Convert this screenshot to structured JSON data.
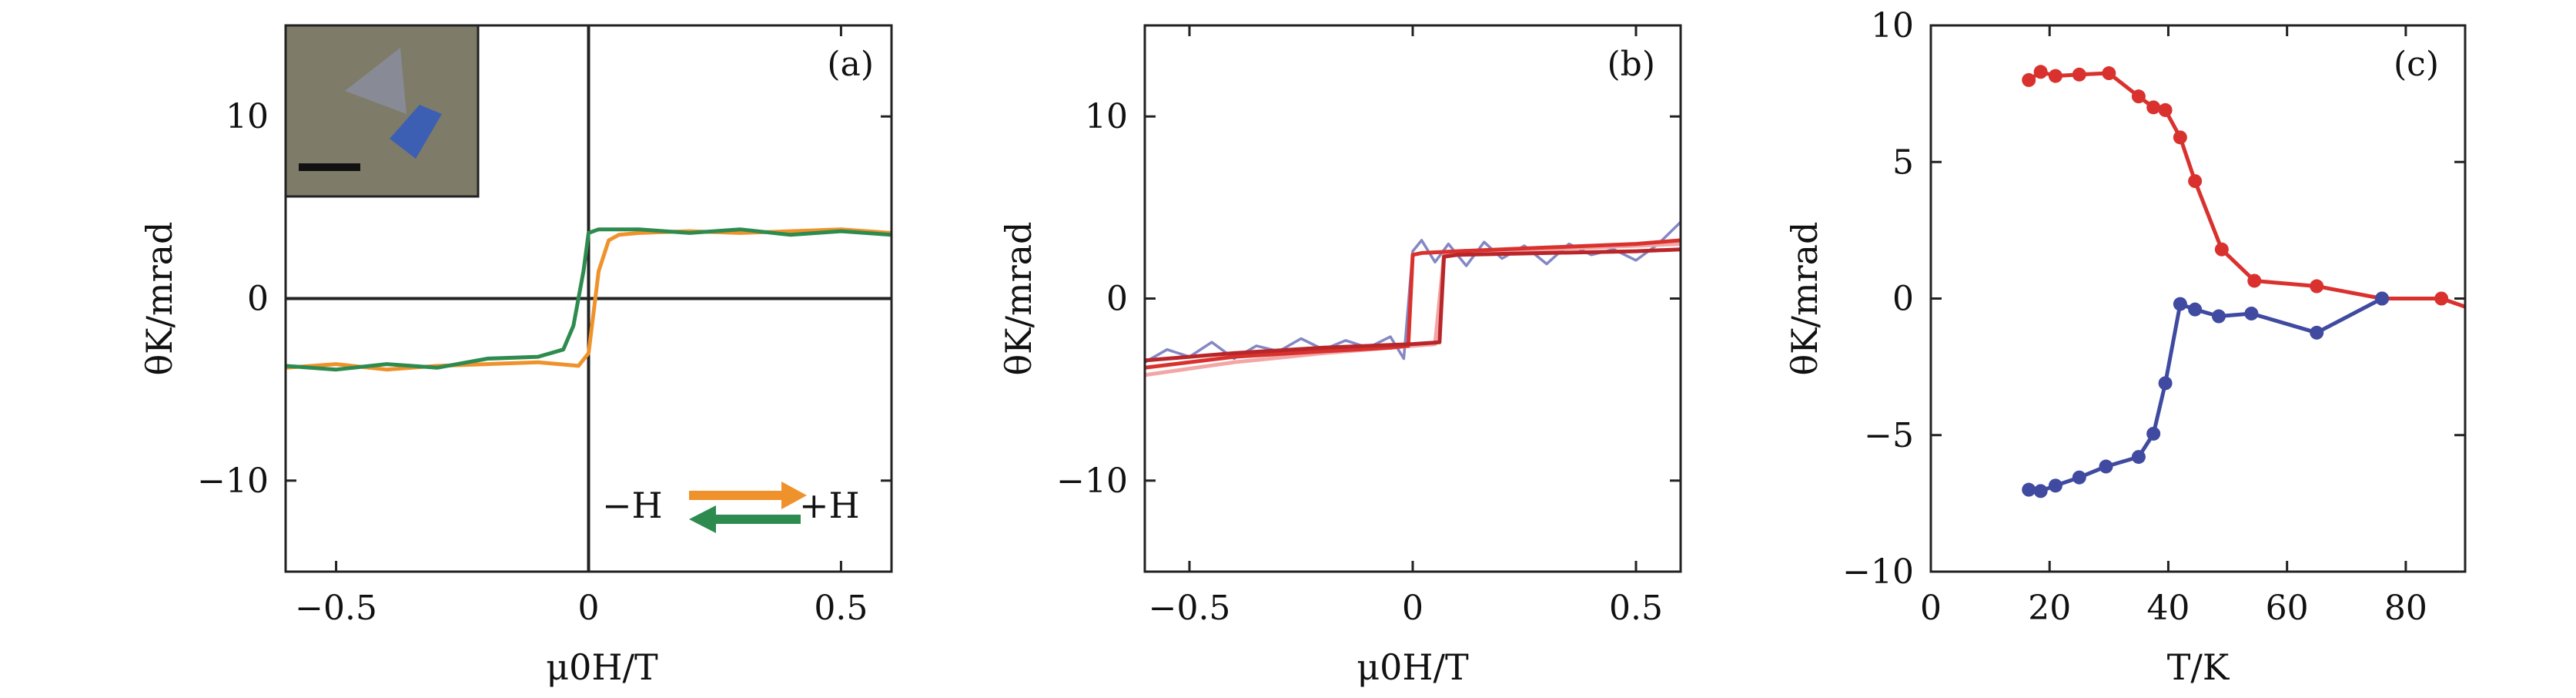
{
  "chart_data": [
    {
      "panel": "(a)",
      "type": "line",
      "xlabel": "μ0H/T",
      "ylabel": "θK/mrad",
      "xlim": [
        -0.6,
        0.6
      ],
      "ylim": [
        -15,
        15
      ],
      "xticks": [
        -0.5,
        0,
        0.5
      ],
      "xtick_labels": [
        "−0.5",
        "0",
        "0.5"
      ],
      "yticks": [
        -10,
        0,
        10
      ],
      "ytick_labels": [
        "−10",
        "0",
        "10"
      ],
      "zero_lines": true,
      "inset": "optical micrograph with scale bar (upper-left)",
      "legend": {
        "left": "−H",
        "right": "+H"
      },
      "series": [
        {
          "name": "sweep +H (orange)",
          "color": "#f0922b",
          "x": [
            -0.6,
            -0.5,
            -0.4,
            -0.3,
            -0.2,
            -0.1,
            -0.02,
            0.0,
            0.02,
            0.04,
            0.06,
            0.1,
            0.2,
            0.3,
            0.4,
            0.5,
            0.6
          ],
          "y": [
            -3.8,
            -3.6,
            -3.9,
            -3.7,
            -3.6,
            -3.5,
            -3.7,
            -3.0,
            1.5,
            3.2,
            3.5,
            3.6,
            3.7,
            3.6,
            3.7,
            3.8,
            3.6
          ]
        },
        {
          "name": "sweep −H (green)",
          "color": "#2e8b4f",
          "x": [
            -0.6,
            -0.5,
            -0.4,
            -0.3,
            -0.2,
            -0.1,
            -0.05,
            -0.03,
            -0.01,
            0.0,
            0.02,
            0.1,
            0.2,
            0.3,
            0.4,
            0.5,
            0.6
          ],
          "y": [
            -3.7,
            -3.9,
            -3.6,
            -3.8,
            -3.3,
            -3.2,
            -2.8,
            -1.5,
            1.5,
            3.6,
            3.8,
            3.8,
            3.6,
            3.8,
            3.5,
            3.7,
            3.5
          ]
        }
      ]
    },
    {
      "panel": "(b)",
      "type": "line",
      "xlabel": "μ0H/T",
      "ylabel": "θK/mrad",
      "xlim": [
        -0.6,
        0.6
      ],
      "ylim": [
        -15,
        15
      ],
      "xticks": [
        -0.5,
        0,
        0.5
      ],
      "xtick_labels": [
        "−0.5",
        "0",
        "0.5"
      ],
      "yticks": [
        -10,
        0,
        10
      ],
      "ytick_labels": [
        "−10",
        "0",
        "10"
      ],
      "series": [
        {
          "name": "noisy loop (blue)",
          "color": "#6f72b8",
          "x": [
            -0.6,
            -0.55,
            -0.5,
            -0.45,
            -0.4,
            -0.35,
            -0.3,
            -0.25,
            -0.2,
            -0.15,
            -0.1,
            -0.05,
            -0.02,
            0.0,
            0.02,
            0.05,
            0.08,
            0.12,
            0.16,
            0.2,
            0.25,
            0.3,
            0.35,
            0.4,
            0.45,
            0.5,
            0.55,
            0.6
          ],
          "y": [
            -3.5,
            -2.8,
            -3.2,
            -2.4,
            -3.3,
            -2.6,
            -2.9,
            -2.2,
            -2.8,
            -2.3,
            -2.7,
            -2.1,
            -3.3,
            2.6,
            3.2,
            2.0,
            3.0,
            1.8,
            3.1,
            2.2,
            2.9,
            1.9,
            3.0,
            2.4,
            2.7,
            2.1,
            3.0,
            4.2
          ]
        },
        {
          "name": "light loop (pink)",
          "color": "#f3a6a6",
          "x": [
            -0.6,
            -0.4,
            -0.2,
            -0.1,
            0.0,
            0.05,
            0.07,
            0.1,
            0.3,
            0.5,
            0.6
          ],
          "y": [
            -4.2,
            -3.5,
            -3.0,
            -2.8,
            -2.6,
            -2.5,
            2.4,
            2.5,
            2.7,
            2.9,
            3.0
          ]
        },
        {
          "name": "main loop (red)",
          "color": "#d9322e",
          "x": [
            -0.6,
            -0.4,
            -0.2,
            -0.05,
            -0.01,
            0.0,
            0.02,
            0.1,
            0.3,
            0.5,
            0.6
          ],
          "y": [
            -3.8,
            -3.2,
            -2.9,
            -2.7,
            -2.6,
            2.4,
            2.5,
            2.6,
            2.8,
            3.0,
            3.2
          ]
        },
        {
          "name": "return loop (dark red)",
          "color": "#b8262a",
          "x": [
            -0.6,
            -0.4,
            -0.2,
            0.0,
            0.06,
            0.07,
            0.1,
            0.3,
            0.5,
            0.6
          ],
          "y": [
            -3.4,
            -3.0,
            -2.7,
            -2.5,
            -2.4,
            2.3,
            2.4,
            2.5,
            2.6,
            2.7
          ]
        }
      ]
    },
    {
      "panel": "(c)",
      "type": "line",
      "xlabel": "T/K",
      "ylabel": "θK/mrad",
      "xlim": [
        0,
        90
      ],
      "ylim": [
        -10,
        10
      ],
      "xticks": [
        0,
        20,
        40,
        60,
        80
      ],
      "xtick_labels": [
        "0",
        "20",
        "40",
        "60",
        "80"
      ],
      "yticks": [
        -10,
        -5,
        0,
        5,
        10
      ],
      "ytick_labels": [
        "−10",
        "−5",
        "0",
        "5",
        "10"
      ],
      "series": [
        {
          "name": "positive branch (red)",
          "color": "#d9322e",
          "x": [
            16.5,
            18.5,
            21,
            25,
            30,
            35,
            37.5,
            39.5,
            42,
            44.5,
            49,
            54.5,
            65,
            76,
            86,
            90
          ],
          "y": [
            8.0,
            8.3,
            8.15,
            8.2,
            8.25,
            7.4,
            7.0,
            6.9,
            5.9,
            4.3,
            1.8,
            0.65,
            0.45,
            0.0,
            0.0,
            -0.3
          ],
          "markers_on": [
            true,
            true,
            true,
            true,
            true,
            true,
            true,
            true,
            true,
            true,
            true,
            true,
            true,
            true,
            true,
            false
          ]
        },
        {
          "name": "negative branch (blue)",
          "color": "#3f4aa0",
          "x": [
            16.5,
            18.5,
            21,
            25,
            29.5,
            35,
            37.5,
            39.5,
            42,
            44.5,
            48.5,
            54,
            65,
            76
          ],
          "y": [
            -7.0,
            -7.05,
            -6.85,
            -6.55,
            -6.15,
            -5.8,
            -4.95,
            -3.1,
            -0.2,
            -0.4,
            -0.65,
            -0.55,
            -1.25,
            0.0
          ],
          "markers_on": [
            true,
            true,
            true,
            true,
            true,
            true,
            true,
            true,
            true,
            true,
            true,
            true,
            true,
            true
          ]
        }
      ]
    }
  ]
}
